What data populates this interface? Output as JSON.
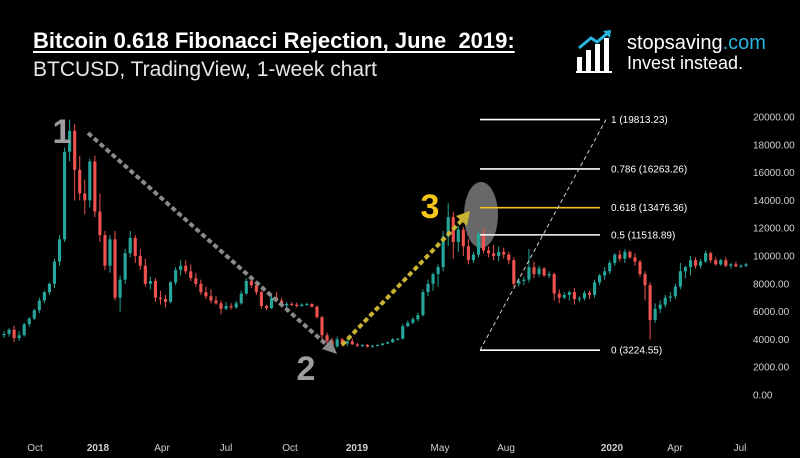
{
  "header": {
    "title": "Bitcoin 0.618 Fibonacci Rejection, June  2019:",
    "subtitle": "BTCUSD, TradingView, 1-week chart"
  },
  "brand": {
    "name_main": "stopsaving",
    "name_suffix": ".com",
    "tagline": "Invest instead.",
    "accent_color": "#28b4dc",
    "icon": "bar-chart-arrow-icon"
  },
  "chart_data": {
    "type": "candlestick",
    "title": "Bitcoin 0.618 Fibonacci Rejection, June  2019:",
    "subtitle": "BTCUSD, TradingView, 1-week chart",
    "y_ticks": [
      "20000.00",
      "18000.00",
      "16000.00",
      "14000.00",
      "12000.00",
      "10000.00",
      "8000.00",
      "6000.00",
      "4000.00",
      "2000.00",
      "0.00"
    ],
    "ylim": [
      0,
      20000
    ],
    "x_ticks": [
      "Oct",
      "2018",
      "Apr",
      "Jul",
      "Oct",
      "2019",
      "May",
      "Aug",
      "2020",
      "Apr",
      "Jul"
    ],
    "x_tick_bold": [
      false,
      true,
      false,
      false,
      false,
      true,
      false,
      false,
      true,
      false,
      false
    ],
    "up_color": "#26a69a",
    "down_color": "#ef5350",
    "fib_levels": [
      {
        "label": "1 (19813.23)",
        "value": 19813.23,
        "color": "#ffffff"
      },
      {
        "label": "0.786 (16263.26)",
        "value": 16263.26,
        "color": "#ffffff"
      },
      {
        "label": "0.618 (13476.36)",
        "value": 13476.36,
        "color": "#f0c419"
      },
      {
        "label": "0.5 (11518.89)",
        "value": 11518.89,
        "color": "#ffffff"
      },
      {
        "label": "0 (3224.55)",
        "value": 3224.55,
        "color": "#ffffff"
      }
    ],
    "markers": [
      {
        "label": "1",
        "color": "#9e9e9e"
      },
      {
        "label": "2",
        "color": "#9e9e9e"
      },
      {
        "label": "3",
        "color": "#f5c518"
      }
    ],
    "annotations": {
      "downtrend_arrow_color": "#8a8a8a",
      "uptrend_arrow_color": "#c8b432",
      "rejection_ellipse_color": "#bdbdbd"
    },
    "series": [
      {
        "values": [
          [
            4300,
            4600,
            4100,
            4400
          ],
          [
            4400,
            4800,
            4200,
            4700
          ],
          [
            4700,
            5000,
            3800,
            4100
          ],
          [
            4100,
            4600,
            3900,
            4300
          ],
          [
            4300,
            5200,
            4200,
            5100
          ],
          [
            5100,
            5600,
            4900,
            5500
          ],
          [
            5500,
            6200,
            5400,
            6100
          ],
          [
            6100,
            7000,
            5900,
            6800
          ],
          [
            6800,
            7500,
            6600,
            7400
          ],
          [
            7400,
            8100,
            7200,
            8000
          ],
          [
            8000,
            9800,
            7700,
            9600
          ],
          [
            9600,
            11500,
            9300,
            11200
          ],
          [
            11200,
            17800,
            11000,
            17500
          ],
          [
            17500,
            19800,
            16800,
            19000
          ],
          [
            19000,
            19500,
            14000,
            16200
          ],
          [
            16200,
            17200,
            14000,
            14500
          ],
          [
            14500,
            15500,
            13000,
            14000
          ],
          [
            14000,
            17000,
            13500,
            16800
          ],
          [
            16800,
            17200,
            12800,
            13200
          ],
          [
            13200,
            14500,
            11000,
            11500
          ],
          [
            11500,
            11800,
            9000,
            9300
          ],
          [
            9300,
            11500,
            8800,
            11200
          ],
          [
            11200,
            11800,
            6800,
            7000
          ],
          [
            7000,
            8600,
            6000,
            8300
          ],
          [
            8300,
            10500,
            8000,
            10200
          ],
          [
            10200,
            11800,
            9900,
            11300
          ],
          [
            11300,
            11500,
            9500,
            10000
          ],
          [
            10000,
            10500,
            9000,
            9300
          ],
          [
            9300,
            9800,
            7800,
            8000
          ],
          [
            8000,
            8500,
            7600,
            8200
          ],
          [
            8200,
            8400,
            6700,
            7000
          ],
          [
            7000,
            7500,
            6500,
            6900
          ],
          [
            6900,
            7200,
            6300,
            6700
          ],
          [
            6700,
            8200,
            6600,
            8100
          ],
          [
            8100,
            9200,
            7900,
            9000
          ],
          [
            9000,
            9700,
            8600,
            9300
          ],
          [
            9300,
            9700,
            8700,
            8900
          ],
          [
            8900,
            9400,
            8200,
            8400
          ],
          [
            8400,
            8800,
            7800,
            8000
          ],
          [
            8000,
            8300,
            7200,
            7400
          ],
          [
            7400,
            7800,
            6900,
            7100
          ],
          [
            7100,
            7600,
            6600,
            6800
          ],
          [
            6800,
            7100,
            6500,
            6600
          ],
          [
            6600,
            6800,
            5800,
            6200
          ],
          [
            6200,
            6700,
            6100,
            6400
          ],
          [
            6400,
            6600,
            6150,
            6300
          ],
          [
            6300,
            6750,
            6200,
            6600
          ],
          [
            6600,
            7500,
            6500,
            7300
          ],
          [
            7300,
            8400,
            7200,
            8200
          ],
          [
            8200,
            8500,
            7700,
            7900
          ],
          [
            7900,
            8000,
            7200,
            7400
          ],
          [
            7400,
            7500,
            6200,
            6400
          ],
          [
            6400,
            6500,
            6100,
            6250
          ],
          [
            6250,
            7200,
            6200,
            7000
          ],
          [
            7000,
            7400,
            6700,
            6800
          ],
          [
            6800,
            7000,
            6300,
            6450
          ],
          [
            6450,
            6700,
            6200,
            6550
          ],
          [
            6550,
            6700,
            6400,
            6500
          ],
          [
            6500,
            6650,
            6300,
            6400
          ],
          [
            6400,
            6600,
            6350,
            6500
          ],
          [
            6500,
            6650,
            6400,
            6550
          ],
          [
            6550,
            6600,
            6300,
            6350
          ],
          [
            6350,
            6450,
            5500,
            5600
          ],
          [
            5600,
            5700,
            4000,
            4300
          ],
          [
            4300,
            4500,
            3700,
            3900
          ],
          [
            3900,
            4100,
            3300,
            3500
          ],
          [
            3500,
            4200,
            3400,
            4000
          ],
          [
            4000,
            4100,
            3500,
            3700
          ],
          [
            3700,
            4000,
            3500,
            3850
          ],
          [
            3850,
            4050,
            3600,
            3650
          ],
          [
            3650,
            3750,
            3450,
            3550
          ],
          [
            3550,
            3650,
            3450,
            3600
          ],
          [
            3600,
            3680,
            3420,
            3480
          ],
          [
            3480,
            3600,
            3400,
            3550
          ],
          [
            3550,
            3650,
            3480,
            3600
          ],
          [
            3600,
            3750,
            3550,
            3700
          ],
          [
            3700,
            3850,
            3650,
            3800
          ],
          [
            3800,
            4100,
            3750,
            4000
          ],
          [
            4000,
            4100,
            3900,
            4050
          ],
          [
            4050,
            5100,
            4000,
            4950
          ],
          [
            4950,
            5350,
            4900,
            5200
          ],
          [
            5200,
            5600,
            5100,
            5450
          ],
          [
            5450,
            5900,
            5300,
            5750
          ],
          [
            5750,
            7600,
            5650,
            7400
          ],
          [
            7400,
            8300,
            7100,
            8000
          ],
          [
            8000,
            8800,
            7500,
            8700
          ],
          [
            8700,
            9400,
            7800,
            9200
          ],
          [
            9200,
            11800,
            8900,
            11400
          ],
          [
            11400,
            13800,
            10700,
            12800
          ],
          [
            12800,
            13200,
            9800,
            11000
          ],
          [
            11000,
            12200,
            10300,
            11900
          ],
          [
            11900,
            12100,
            10000,
            10700
          ],
          [
            10700,
            11200,
            9400,
            9700
          ],
          [
            9700,
            10300,
            9500,
            10100
          ],
          [
            10100,
            11800,
            9900,
            11600
          ],
          [
            11600,
            12000,
            10200,
            10400
          ],
          [
            10400,
            10700,
            9900,
            10200
          ],
          [
            10200,
            10800,
            9700,
            10000
          ],
          [
            10000,
            10700,
            9600,
            10300
          ],
          [
            10300,
            10600,
            9800,
            10100
          ],
          [
            10100,
            10300,
            9400,
            9700
          ],
          [
            9700,
            9900,
            7800,
            8000
          ],
          [
            8000,
            8400,
            7800,
            8200
          ],
          [
            8200,
            8500,
            7900,
            8300
          ],
          [
            8300,
            10500,
            8100,
            9200
          ],
          [
            9200,
            9600,
            8400,
            8700
          ],
          [
            8700,
            9300,
            8500,
            9100
          ],
          [
            9100,
            9200,
            8500,
            8600
          ],
          [
            8600,
            8900,
            8400,
            8700
          ],
          [
            8700,
            8800,
            6800,
            7300
          ],
          [
            7300,
            7600,
            6600,
            7000
          ],
          [
            7000,
            7400,
            6900,
            7200
          ],
          [
            7200,
            7500,
            6800,
            7400
          ],
          [
            7400,
            7700,
            6500,
            6900
          ],
          [
            6900,
            7100,
            6700,
            6950
          ],
          [
            6950,
            7500,
            6800,
            7350
          ],
          [
            7350,
            7500,
            6900,
            7200
          ],
          [
            7200,
            8300,
            7000,
            8100
          ],
          [
            8100,
            8700,
            7900,
            8600
          ],
          [
            8600,
            9200,
            8300,
            8900
          ],
          [
            8900,
            9700,
            8700,
            9500
          ],
          [
            9500,
            10200,
            9300,
            10100
          ],
          [
            10100,
            10400,
            9600,
            9800
          ],
          [
            9800,
            10500,
            9500,
            10300
          ],
          [
            10300,
            10400,
            9800,
            9900
          ],
          [
            9900,
            10200,
            9300,
            9600
          ],
          [
            9600,
            9700,
            8500,
            8700
          ],
          [
            8700,
            8900,
            6800,
            7900
          ],
          [
            7900,
            8100,
            4000,
            5400
          ],
          [
            5400,
            6600,
            5200,
            6200
          ],
          [
            6200,
            6800,
            5900,
            6500
          ],
          [
            6500,
            7200,
            6300,
            7000
          ],
          [
            7000,
            7400,
            6700,
            7100
          ],
          [
            7100,
            8000,
            6900,
            7800
          ],
          [
            7800,
            9500,
            7600,
            8900
          ],
          [
            8900,
            9300,
            8400,
            9200
          ],
          [
            9200,
            10000,
            8600,
            9700
          ],
          [
            9700,
            9900,
            9100,
            9300
          ],
          [
            9300,
            9800,
            9100,
            9600
          ],
          [
            9600,
            10400,
            9500,
            10200
          ],
          [
            10200,
            10300,
            9500,
            9700
          ],
          [
            9700,
            9900,
            9300,
            9400
          ],
          [
            9400,
            9800,
            9300,
            9700
          ],
          [
            9700,
            9900,
            9200,
            9300
          ],
          [
            9300,
            9500,
            9100,
            9400
          ],
          [
            9400,
            9600,
            9200,
            9250
          ],
          [
            9250,
            9400,
            9150,
            9300
          ],
          [
            9300,
            9500,
            9200,
            9400
          ]
        ]
      }
    ]
  }
}
